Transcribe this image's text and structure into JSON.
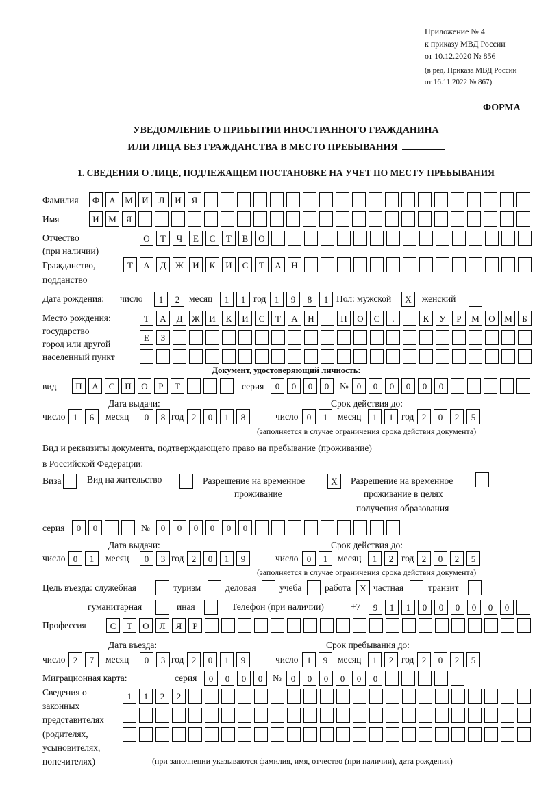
{
  "header": {
    "appendix": "Приложение № 4",
    "order": "к приказу МВД России",
    "date": "от 10.12.2020 № 856",
    "edition1": "(в ред. Приказа МВД России",
    "edition2": "от 16.11.2022 № 867)",
    "form_label": "ФОРМА",
    "title1": "УВЕДОМЛЕНИЕ О ПРИБЫТИИ ИНОСТРАННОГО ГРАЖДАНИНА",
    "title2": "ИЛИ ЛИЦА БЕЗ ГРАЖДАНСТВА В МЕСТО ПРЕБЫВАНИЯ",
    "section1": "1. СВЕДЕНИЯ О ЛИЦЕ, ПОДЛЕЖАЩЕМ ПОСТАНОВКЕ НА УЧЕТ ПО МЕСТУ ПРЕБЫВАНИЯ"
  },
  "labels": {
    "surname": "Фамилия",
    "name": "Имя",
    "patronymic": "Отчество",
    "if_any": "(при наличии)",
    "citizenship": "Гражданство,",
    "subject": "подданство",
    "birth_date": "Дата рождения:",
    "day": "число",
    "month": "месяц",
    "year": "год",
    "sex_male": "Пол: мужской",
    "sex_female": "женский",
    "birth_place": "Место рождения:",
    "state": "государство",
    "city": "город или другой",
    "locality": "населенный пункт",
    "id_doc": "Документ, удостоверяющий личность:",
    "kind": "вид",
    "series": "серия",
    "number": "№",
    "issue_date": "Дата выдачи:",
    "valid_until": "Срок действия до:",
    "validity_note": "(заполняется в случае ограничения срока действия документа)",
    "stay_doc1": "Вид и реквизиты документа, подтверждающего право на пребывание (проживание)",
    "stay_doc2": "в Российской Федерации:",
    "visa": "Виза",
    "residence": "Вид на жительство",
    "temp_permit1": "Разрешение на временное",
    "temp_permit2": "проживание",
    "edu_permit1": "Разрешение на временное",
    "edu_permit2": "проживание в целях",
    "edu_permit3": "получения образования",
    "purpose": "Цель въезда: служебная",
    "tourism": "туризм",
    "business": "деловая",
    "study": "учеба",
    "work": "работа",
    "private": "частная",
    "transit": "транзит",
    "humanitarian": "гуманитарная",
    "other": "иная",
    "phone": "Телефон (при наличии)",
    "phone_prefix": "+7",
    "profession": "Профессия",
    "entry_date": "Дата въезда:",
    "stay_until": "Срок пребывания до:",
    "migration_card": "Миграционная карта:",
    "reps1": "Сведения о",
    "reps2": "законных",
    "reps3": "представителях",
    "reps4": "(родителях,",
    "reps5": "усыновителях,",
    "reps6": "попечителях)",
    "reps_note": "(при заполнении указываются фамилия, имя, отчество (при наличии), дата рождения)"
  },
  "values": {
    "surname": "ФАМИЛИЯ",
    "name": "ИМЯ",
    "patronymic": "ОТЧЕСТВО",
    "citizenship": "ТАДЖИКИСТАН",
    "birth_day": "12",
    "birth_month": "11",
    "birth_year": "1981",
    "sex_male": "X",
    "sex_female": "",
    "birth_place1": "ТАДЖИКИСТАН ПОС. КУРМОМБ",
    "birth_place2": "ЕЗ",
    "birth_place3": "",
    "id_kind": "ПАСПОРТ",
    "id_series": "0000",
    "id_number": "000000",
    "id_issue_day": "16",
    "id_issue_month": "08",
    "id_issue_year": "2018",
    "id_valid_day": "01",
    "id_valid_month": "11",
    "id_valid_year": "2025",
    "visa": "",
    "residence": "",
    "temp_permit": "X",
    "edu_permit": "",
    "stay_series": "00",
    "stay_number": "000000",
    "stay_issue_day": "01",
    "stay_issue_month": "03",
    "stay_issue_year": "2019",
    "stay_valid_day": "01",
    "stay_valid_month": "12",
    "stay_valid_year": "2025",
    "purpose_official": "",
    "purpose_tourism": "",
    "purpose_business": "",
    "purpose_study": "",
    "purpose_work": "X",
    "purpose_private": "",
    "purpose_transit": "",
    "purpose_humanitarian": "",
    "purpose_other": "",
    "phone": "911000000",
    "profession": "СТОЛЯР",
    "entry_day": "27",
    "entry_month": "03",
    "entry_year": "2019",
    "stay_until_day": "19",
    "stay_until_month": "12",
    "stay_until_year": "2025",
    "mig_series": "0000",
    "mig_number": "000000",
    "reps1": "1122",
    "reps2": "",
    "reps3": ""
  }
}
